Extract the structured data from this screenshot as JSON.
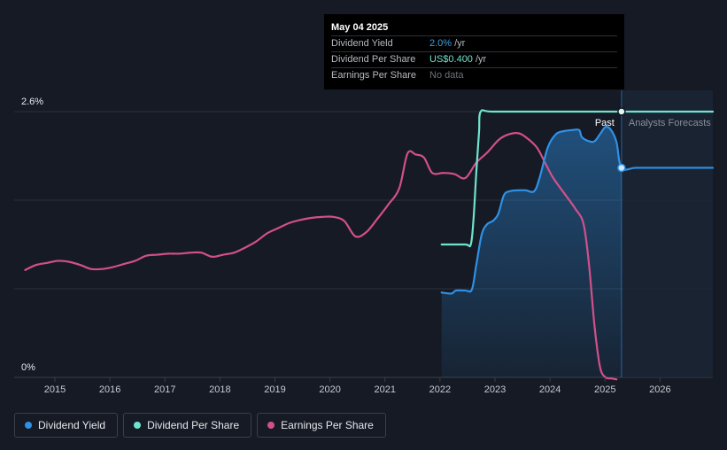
{
  "tooltip": {
    "date": "May 04 2025",
    "rows": [
      {
        "label": "Dividend Yield",
        "value": "2.0%",
        "unit": "/yr",
        "color": "#3b9ee8"
      },
      {
        "label": "Dividend Per Share",
        "value": "US$0.400",
        "unit": "/yr",
        "color": "#6fe3cf"
      },
      {
        "label": "Earnings Per Share",
        "value": "No data",
        "unit": "",
        "color": ""
      }
    ]
  },
  "legend": [
    {
      "label": "Dividend Yield",
      "color": "#2f91e6"
    },
    {
      "label": "Dividend Per Share",
      "color": "#6fe3cf"
    },
    {
      "label": "Earnings Per Share",
      "color": "#d2508a"
    }
  ],
  "chart_data": {
    "type": "line",
    "x_ticks": [
      "2015",
      "2016",
      "2017",
      "2018",
      "2019",
      "2020",
      "2021",
      "2022",
      "2023",
      "2024",
      "2025",
      "2026"
    ],
    "y_ticks": [
      "0%",
      "2.6%"
    ],
    "ylim": [
      0,
      2.6
    ],
    "xlim": [
      2014.3,
      2027.0
    ],
    "region_labels": {
      "past": "Past",
      "forecast": "Analysts Forecasts"
    },
    "forecast_start": 2025.34,
    "grid": true,
    "series": [
      {
        "name": "Dividend Yield",
        "color": "#2f91e6",
        "points": [
          [
            2022.07,
            0.83
          ],
          [
            2022.25,
            0.82
          ],
          [
            2022.33,
            0.85
          ],
          [
            2022.5,
            0.85
          ],
          [
            2022.62,
            0.86
          ],
          [
            2022.7,
            1.1
          ],
          [
            2022.8,
            1.4
          ],
          [
            2022.9,
            1.5
          ],
          [
            2023.0,
            1.53
          ],
          [
            2023.1,
            1.6
          ],
          [
            2023.2,
            1.78
          ],
          [
            2023.3,
            1.82
          ],
          [
            2023.45,
            1.83
          ],
          [
            2023.6,
            1.83
          ],
          [
            2023.75,
            1.82
          ],
          [
            2023.85,
            1.95
          ],
          [
            2024.0,
            2.25
          ],
          [
            2024.15,
            2.38
          ],
          [
            2024.3,
            2.41
          ],
          [
            2024.45,
            2.42
          ],
          [
            2024.57,
            2.42
          ],
          [
            2024.62,
            2.35
          ],
          [
            2024.75,
            2.31
          ],
          [
            2024.85,
            2.31
          ],
          [
            2024.95,
            2.38
          ],
          [
            2025.05,
            2.45
          ],
          [
            2025.15,
            2.42
          ],
          [
            2025.25,
            2.3
          ],
          [
            2025.34,
            2.05
          ],
          [
            2025.6,
            2.05
          ],
          [
            2026.0,
            2.05
          ],
          [
            2026.5,
            2.05
          ],
          [
            2027.0,
            2.05
          ]
        ]
      },
      {
        "name": "Dividend Per Share",
        "color": "#6fe3cf",
        "points": [
          [
            2022.07,
            1.3
          ],
          [
            2022.5,
            1.3
          ],
          [
            2022.6,
            1.3
          ],
          [
            2022.65,
            1.55
          ],
          [
            2022.7,
            2.0
          ],
          [
            2022.75,
            2.4
          ],
          [
            2022.78,
            2.6
          ],
          [
            2023.0,
            2.6
          ],
          [
            2024.0,
            2.6
          ],
          [
            2025.0,
            2.6
          ],
          [
            2025.34,
            2.6
          ],
          [
            2026.0,
            2.6
          ],
          [
            2027.0,
            2.6
          ]
        ]
      },
      {
        "name": "Earnings Per Share",
        "color": "#d2508a",
        "points": [
          [
            2014.5,
            1.05
          ],
          [
            2014.7,
            1.1
          ],
          [
            2014.9,
            1.12
          ],
          [
            2015.1,
            1.14
          ],
          [
            2015.3,
            1.13
          ],
          [
            2015.5,
            1.1
          ],
          [
            2015.7,
            1.06
          ],
          [
            2015.9,
            1.06
          ],
          [
            2016.1,
            1.08
          ],
          [
            2016.3,
            1.11
          ],
          [
            2016.5,
            1.14
          ],
          [
            2016.7,
            1.19
          ],
          [
            2016.9,
            1.2
          ],
          [
            2017.1,
            1.21
          ],
          [
            2017.3,
            1.21
          ],
          [
            2017.5,
            1.22
          ],
          [
            2017.7,
            1.22
          ],
          [
            2017.9,
            1.18
          ],
          [
            2018.1,
            1.2
          ],
          [
            2018.3,
            1.22
          ],
          [
            2018.5,
            1.27
          ],
          [
            2018.7,
            1.33
          ],
          [
            2018.9,
            1.41
          ],
          [
            2019.1,
            1.46
          ],
          [
            2019.3,
            1.51
          ],
          [
            2019.5,
            1.54
          ],
          [
            2019.7,
            1.56
          ],
          [
            2019.9,
            1.57
          ],
          [
            2020.1,
            1.57
          ],
          [
            2020.3,
            1.53
          ],
          [
            2020.5,
            1.38
          ],
          [
            2020.7,
            1.42
          ],
          [
            2020.9,
            1.55
          ],
          [
            2021.1,
            1.69
          ],
          [
            2021.3,
            1.85
          ],
          [
            2021.45,
            2.19
          ],
          [
            2021.6,
            2.18
          ],
          [
            2021.75,
            2.15
          ],
          [
            2021.9,
            2.0
          ],
          [
            2022.1,
            2.0
          ],
          [
            2022.3,
            1.99
          ],
          [
            2022.5,
            1.95
          ],
          [
            2022.7,
            2.1
          ],
          [
            2022.9,
            2.2
          ],
          [
            2023.1,
            2.32
          ],
          [
            2023.25,
            2.37
          ],
          [
            2023.45,
            2.39
          ],
          [
            2023.6,
            2.35
          ],
          [
            2023.8,
            2.25
          ],
          [
            2023.95,
            2.1
          ],
          [
            2024.1,
            1.95
          ],
          [
            2024.3,
            1.8
          ],
          [
            2024.5,
            1.65
          ],
          [
            2024.65,
            1.5
          ],
          [
            2024.75,
            1.1
          ],
          [
            2024.85,
            0.5
          ],
          [
            2024.95,
            0.1
          ],
          [
            2025.05,
            0.0
          ],
          [
            2025.15,
            -0.01
          ],
          [
            2025.25,
            -0.02
          ]
        ]
      }
    ]
  }
}
